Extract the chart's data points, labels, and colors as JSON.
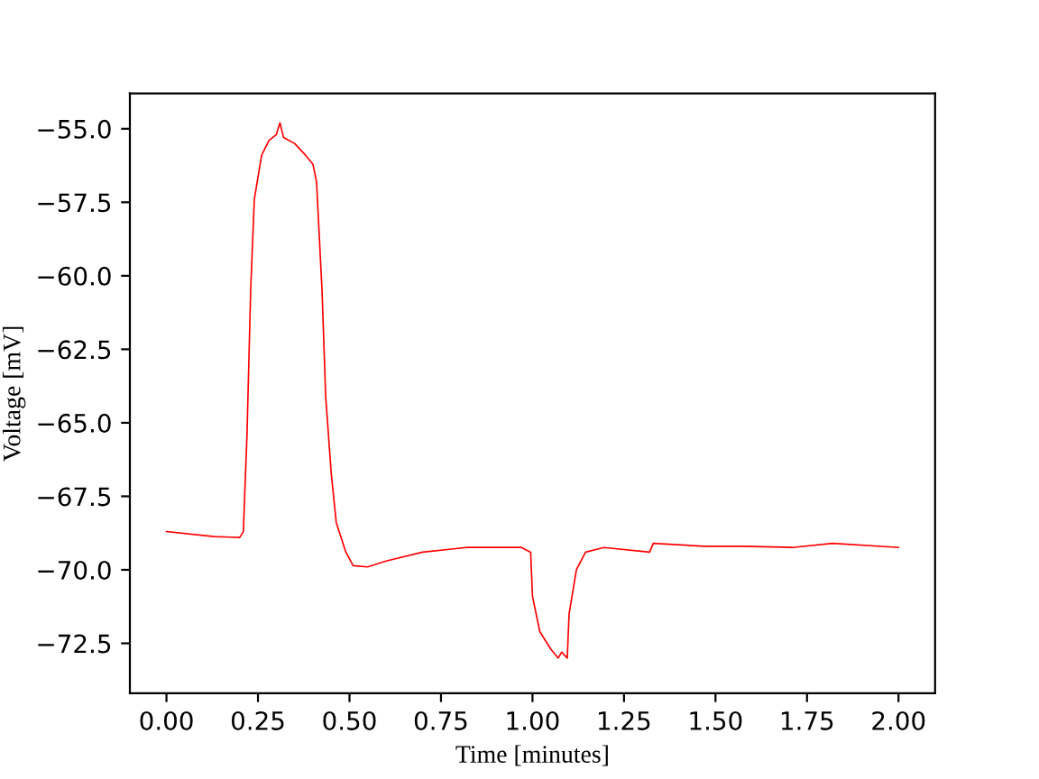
{
  "chart_data": {
    "type": "line",
    "xlabel": "Time [minutes]",
    "ylabel": "Voltage [mV]",
    "xlim": [
      -0.1,
      2.1
    ],
    "ylim": [
      -74.2,
      -53.8
    ],
    "xticks": [
      {
        "value": 0,
        "label": "0.00"
      },
      {
        "value": 0.25,
        "label": "0.25"
      },
      {
        "value": 0.5,
        "label": "0.50"
      },
      {
        "value": 0.75,
        "label": "0.75"
      },
      {
        "value": 1,
        "label": "1.00"
      },
      {
        "value": 1.25,
        "label": "1.25"
      },
      {
        "value": 1.5,
        "label": "1.50"
      },
      {
        "value": 1.75,
        "label": "1.75"
      },
      {
        "value": 2,
        "label": "2.00"
      }
    ],
    "yticks": [
      {
        "value": -55,
        "label": "−55.0"
      },
      {
        "value": -57.5,
        "label": "−57.5"
      },
      {
        "value": -60,
        "label": "−60.0"
      },
      {
        "value": -62.5,
        "label": "−62.5"
      },
      {
        "value": -65,
        "label": "−65.0"
      },
      {
        "value": -67.5,
        "label": "−67.5"
      },
      {
        "value": -70,
        "label": "−70.0"
      },
      {
        "value": -72.5,
        "label": "−72.5"
      }
    ],
    "grid": false,
    "marker": "none",
    "line_style": "solid",
    "series": [
      {
        "color": "#ff0000",
        "x": [
          0,
          0.13,
          0.2,
          0.21,
          0.22,
          0.23,
          0.24,
          0.26,
          0.28,
          0.3,
          0.31,
          0.32,
          0.35,
          0.38,
          0.4,
          0.41,
          0.425,
          0.435,
          0.45,
          0.464,
          0.49,
          0.51,
          0.55,
          0.6,
          0.7,
          0.82,
          0.97,
          0.995,
          1.0,
          1.02,
          1.05,
          1.07,
          1.08,
          1.095,
          1.1,
          1.12,
          1.145,
          1.195,
          1.32,
          1.33,
          1.47,
          1.575,
          1.71,
          1.82,
          2.0
        ],
        "values": [
          -68.7,
          -68.87,
          -68.9,
          -68.7,
          -65.4,
          -60.5,
          -57.4,
          -55.9,
          -55.4,
          -55.2,
          -54.8,
          -55.3,
          -55.5,
          -55.9,
          -56.2,
          -56.8,
          -60.5,
          -64.1,
          -66.7,
          -68.4,
          -69.4,
          -69.86,
          -69.9,
          -69.7,
          -69.4,
          -69.24,
          -69.24,
          -69.4,
          -70.9,
          -72.1,
          -72.7,
          -73.0,
          -72.8,
          -73.0,
          -71.5,
          -70.0,
          -69.4,
          -69.24,
          -69.4,
          -69.1,
          -69.2,
          -69.2,
          -69.24,
          -69.1,
          -69.24
        ]
      }
    ]
  }
}
